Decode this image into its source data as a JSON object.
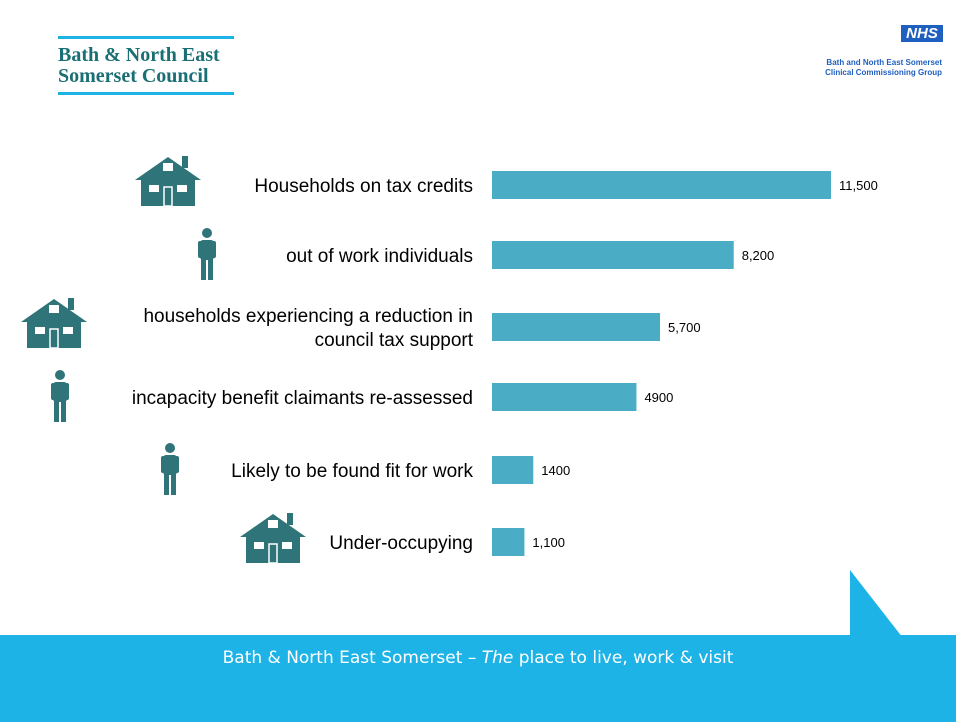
{
  "header": {
    "council_line1": "Bath & North East",
    "council_line2": "Somerset Council",
    "nhs_badge": "NHS",
    "ccg_line1": "Bath and North East Somerset",
    "ccg_line2": "Clinical Commissioning Group"
  },
  "footer": {
    "text_before": "Bath & North East Somerset – ",
    "text_em": "The",
    "text_after": " place to live, work & visit"
  },
  "colors": {
    "bar": "#4bacc6",
    "icon": "#2f7478",
    "accent": "#1eb3e6",
    "nhs_blue": "#1f5fbf"
  },
  "chart_data": {
    "type": "bar",
    "orientation": "horizontal",
    "categories": [
      "Households on tax credits",
      "out of work individuals",
      "households experiencing a reduction in council tax support",
      "incapacity benefit claimants re-assessed",
      "Likely to be found fit for work",
      "Under-occupying"
    ],
    "category_lines": [
      [
        "Households on tax credits"
      ],
      [
        "out of work individuals"
      ],
      [
        "households experiencing a reduction in",
        "council tax support"
      ],
      [
        "incapacity benefit claimants re-assessed"
      ],
      [
        "Likely to be found fit for work"
      ],
      [
        "Under-occupying"
      ]
    ],
    "icons": [
      "house-icon",
      "person-icon",
      "house-icon",
      "person-icon",
      "person-icon",
      "house-icon"
    ],
    "values": [
      11500,
      8200,
      5700,
      4900,
      1400,
      1100
    ],
    "data_labels": [
      "11,500",
      "8,200",
      "5,700",
      "4900",
      "1400",
      "1,100"
    ],
    "xlim": [
      0,
      11500
    ],
    "grid": false,
    "legend": "none"
  }
}
